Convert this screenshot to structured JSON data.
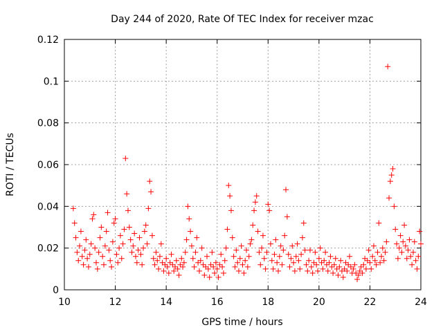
{
  "chart_data": {
    "type": "scatter",
    "title": "Day 244 of 2020, Rate Of TEC Index for receiver mzac",
    "xlabel": "GPS time / hours",
    "ylabel": "ROTI / TECUs",
    "xlim": [
      10,
      24
    ],
    "ylim": [
      0,
      0.12
    ],
    "x_ticks": [
      10,
      12,
      14,
      16,
      18,
      20,
      22,
      24
    ],
    "x_tick_labels": [
      "10",
      "12",
      "14",
      "16",
      "18",
      "20",
      "22",
      "24"
    ],
    "y_ticks": [
      0,
      0.02,
      0.04,
      0.06,
      0.08,
      0.1,
      0.12
    ],
    "y_tick_labels": [
      "0",
      "0.02",
      "0.04",
      "0.06",
      "0.08",
      "0.1",
      "0.12"
    ],
    "grid": true,
    "marker": "+",
    "marker_color": "#ff0000",
    "series": [
      {
        "name": "ROTI",
        "points": [
          [
            10.35,
            0.039
          ],
          [
            10.4,
            0.032
          ],
          [
            10.45,
            0.025
          ],
          [
            10.5,
            0.018
          ],
          [
            10.55,
            0.014
          ],
          [
            10.6,
            0.021
          ],
          [
            10.65,
            0.028
          ],
          [
            10.7,
            0.016
          ],
          [
            10.75,
            0.012
          ],
          [
            10.8,
            0.019
          ],
          [
            10.85,
            0.024
          ],
          [
            10.9,
            0.015
          ],
          [
            10.95,
            0.011
          ],
          [
            11.0,
            0.017
          ],
          [
            11.05,
            0.022
          ],
          [
            11.1,
            0.034
          ],
          [
            11.15,
            0.036
          ],
          [
            11.2,
            0.02
          ],
          [
            11.25,
            0.013
          ],
          [
            11.3,
            0.01
          ],
          [
            11.35,
            0.018
          ],
          [
            11.4,
            0.025
          ],
          [
            11.45,
            0.03
          ],
          [
            11.5,
            0.016
          ],
          [
            11.55,
            0.012
          ],
          [
            11.6,
            0.021
          ],
          [
            11.65,
            0.028
          ],
          [
            11.7,
            0.037
          ],
          [
            11.75,
            0.019
          ],
          [
            11.8,
            0.014
          ],
          [
            11.85,
            0.011
          ],
          [
            11.9,
            0.023
          ],
          [
            11.95,
            0.032
          ],
          [
            12.0,
            0.034
          ],
          [
            12.05,
            0.017
          ],
          [
            12.1,
            0.013
          ],
          [
            12.15,
            0.02
          ],
          [
            12.2,
            0.026
          ],
          [
            12.25,
            0.015
          ],
          [
            12.3,
            0.022
          ],
          [
            12.35,
            0.029
          ],
          [
            12.4,
            0.063
          ],
          [
            12.45,
            0.046
          ],
          [
            12.5,
            0.038
          ],
          [
            12.55,
            0.03
          ],
          [
            12.6,
            0.024
          ],
          [
            12.65,
            0.018
          ],
          [
            12.7,
            0.021
          ],
          [
            12.75,
            0.027
          ],
          [
            12.8,
            0.016
          ],
          [
            12.85,
            0.013
          ],
          [
            12.9,
            0.019
          ],
          [
            12.95,
            0.025
          ],
          [
            13.0,
            0.017
          ],
          [
            13.05,
            0.012
          ],
          [
            13.1,
            0.02
          ],
          [
            13.15,
            0.028
          ],
          [
            13.2,
            0.031
          ],
          [
            13.25,
            0.022
          ],
          [
            13.3,
            0.039
          ],
          [
            13.35,
            0.052
          ],
          [
            13.4,
            0.047
          ],
          [
            13.45,
            0.026
          ],
          [
            13.5,
            0.015
          ],
          [
            13.55,
            0.012
          ],
          [
            13.6,
            0.018
          ],
          [
            13.65,
            0.014
          ],
          [
            13.7,
            0.01
          ],
          [
            13.75,
            0.016
          ],
          [
            13.8,
            0.022
          ],
          [
            13.85,
            0.013
          ],
          [
            13.9,
            0.009
          ],
          [
            13.95,
            0.012
          ],
          [
            14.0,
            0.015
          ],
          [
            14.05,
            0.011
          ],
          [
            14.1,
            0.008
          ],
          [
            14.15,
            0.013
          ],
          [
            14.2,
            0.017
          ],
          [
            14.25,
            0.012
          ],
          [
            14.3,
            0.009
          ],
          [
            14.35,
            0.011
          ],
          [
            14.4,
            0.014
          ],
          [
            14.45,
            0.01
          ],
          [
            14.5,
            0.007
          ],
          [
            14.55,
            0.012
          ],
          [
            14.6,
            0.015
          ],
          [
            14.65,
            0.011
          ],
          [
            14.7,
            0.013
          ],
          [
            14.75,
            0.018
          ],
          [
            14.8,
            0.024
          ],
          [
            14.85,
            0.04
          ],
          [
            14.9,
            0.034
          ],
          [
            14.95,
            0.028
          ],
          [
            15.0,
            0.021
          ],
          [
            15.05,
            0.015
          ],
          [
            15.1,
            0.011
          ],
          [
            15.15,
            0.018
          ],
          [
            15.2,
            0.025
          ],
          [
            15.25,
            0.013
          ],
          [
            15.3,
            0.009
          ],
          [
            15.35,
            0.014
          ],
          [
            15.4,
            0.02
          ],
          [
            15.45,
            0.012
          ],
          [
            15.5,
            0.007
          ],
          [
            15.55,
            0.011
          ],
          [
            15.6,
            0.016
          ],
          [
            15.65,
            0.01
          ],
          [
            15.7,
            0.006
          ],
          [
            15.75,
            0.012
          ],
          [
            15.8,
            0.018
          ],
          [
            15.85,
            0.011
          ],
          [
            15.9,
            0.008
          ],
          [
            15.95,
            0.013
          ],
          [
            16.0,
            0.01
          ],
          [
            16.05,
            0.006
          ],
          [
            16.1,
            0.012
          ],
          [
            16.15,
            0.017
          ],
          [
            16.2,
            0.011
          ],
          [
            16.25,
            0.008
          ],
          [
            16.3,
            0.014
          ],
          [
            16.35,
            0.02
          ],
          [
            16.4,
            0.029
          ],
          [
            16.45,
            0.05
          ],
          [
            16.5,
            0.045
          ],
          [
            16.55,
            0.038
          ],
          [
            16.6,
            0.025
          ],
          [
            16.65,
            0.016
          ],
          [
            16.7,
            0.011
          ],
          [
            16.75,
            0.019
          ],
          [
            16.8,
            0.013
          ],
          [
            16.85,
            0.009
          ],
          [
            16.9,
            0.015
          ],
          [
            16.95,
            0.021
          ],
          [
            17.0,
            0.012
          ],
          [
            17.05,
            0.008
          ],
          [
            17.1,
            0.014
          ],
          [
            17.15,
            0.019
          ],
          [
            17.2,
            0.011
          ],
          [
            17.25,
            0.016
          ],
          [
            17.3,
            0.022
          ],
          [
            17.35,
            0.024
          ],
          [
            17.4,
            0.031
          ],
          [
            17.45,
            0.038
          ],
          [
            17.5,
            0.042
          ],
          [
            17.55,
            0.045
          ],
          [
            17.6,
            0.028
          ],
          [
            17.65,
            0.018
          ],
          [
            17.7,
            0.012
          ],
          [
            17.75,
            0.02
          ],
          [
            17.8,
            0.026
          ],
          [
            17.85,
            0.015
          ],
          [
            17.9,
            0.01
          ],
          [
            17.95,
            0.018
          ],
          [
            18.0,
            0.041
          ],
          [
            18.05,
            0.038
          ],
          [
            18.1,
            0.022
          ],
          [
            18.15,
            0.014
          ],
          [
            18.2,
            0.01
          ],
          [
            18.25,
            0.017
          ],
          [
            18.3,
            0.024
          ],
          [
            18.35,
            0.013
          ],
          [
            18.4,
            0.009
          ],
          [
            18.45,
            0.016
          ],
          [
            18.5,
            0.021
          ],
          [
            18.55,
            0.012
          ],
          [
            18.6,
            0.019
          ],
          [
            18.65,
            0.026
          ],
          [
            18.7,
            0.048
          ],
          [
            18.75,
            0.035
          ],
          [
            18.8,
            0.017
          ],
          [
            18.85,
            0.011
          ],
          [
            18.9,
            0.015
          ],
          [
            18.95,
            0.021
          ],
          [
            19.0,
            0.013
          ],
          [
            19.05,
            0.009
          ],
          [
            19.1,
            0.016
          ],
          [
            19.15,
            0.022
          ],
          [
            19.2,
            0.014
          ],
          [
            19.25,
            0.01
          ],
          [
            19.3,
            0.017
          ],
          [
            19.35,
            0.025
          ],
          [
            19.4,
            0.032
          ],
          [
            19.45,
            0.019
          ],
          [
            19.5,
            0.012
          ],
          [
            19.55,
            0.009
          ],
          [
            19.6,
            0.014
          ],
          [
            19.65,
            0.019
          ],
          [
            19.7,
            0.011
          ],
          [
            19.75,
            0.008
          ],
          [
            19.8,
            0.013
          ],
          [
            19.85,
            0.018
          ],
          [
            19.9,
            0.012
          ],
          [
            19.95,
            0.009
          ],
          [
            20.0,
            0.015
          ],
          [
            20.05,
            0.02
          ],
          [
            20.1,
            0.013
          ],
          [
            20.15,
            0.01
          ],
          [
            20.2,
            0.014
          ],
          [
            20.25,
            0.018
          ],
          [
            20.3,
            0.012
          ],
          [
            20.35,
            0.009
          ],
          [
            20.4,
            0.013
          ],
          [
            20.45,
            0.016
          ],
          [
            20.5,
            0.011
          ],
          [
            20.55,
            0.008
          ],
          [
            20.6,
            0.012
          ],
          [
            20.65,
            0.015
          ],
          [
            20.7,
            0.01
          ],
          [
            20.75,
            0.007
          ],
          [
            20.8,
            0.011
          ],
          [
            20.85,
            0.014
          ],
          [
            20.9,
            0.009
          ],
          [
            20.95,
            0.006
          ],
          [
            21.0,
            0.01
          ],
          [
            21.05,
            0.013
          ],
          [
            21.1,
            0.009
          ],
          [
            21.15,
            0.012
          ],
          [
            21.2,
            0.016
          ],
          [
            21.25,
            0.011
          ],
          [
            21.3,
            0.008
          ],
          [
            21.35,
            0.01
          ],
          [
            21.4,
            0.012
          ],
          [
            21.45,
            0.008
          ],
          [
            21.5,
            0.005
          ],
          [
            21.55,
            0.007
          ],
          [
            21.6,
            0.009
          ],
          [
            21.65,
            0.011
          ],
          [
            21.7,
            0.008
          ],
          [
            21.75,
            0.012
          ],
          [
            21.8,
            0.015
          ],
          [
            21.85,
            0.01
          ],
          [
            21.9,
            0.014
          ],
          [
            21.95,
            0.019
          ],
          [
            22.0,
            0.013
          ],
          [
            22.05,
            0.01
          ],
          [
            22.1,
            0.016
          ],
          [
            22.15,
            0.021
          ],
          [
            22.2,
            0.014
          ],
          [
            22.25,
            0.012
          ],
          [
            22.3,
            0.018
          ],
          [
            22.35,
            0.032
          ],
          [
            22.4,
            0.013
          ],
          [
            22.45,
            0.016
          ],
          [
            22.5,
            0.02
          ],
          [
            22.55,
            0.014
          ],
          [
            22.6,
            0.018
          ],
          [
            22.65,
            0.023
          ],
          [
            22.7,
            0.107
          ],
          [
            22.75,
            0.044
          ],
          [
            22.8,
            0.052
          ],
          [
            22.85,
            0.055
          ],
          [
            22.9,
            0.058
          ],
          [
            22.95,
            0.04
          ],
          [
            23.0,
            0.029
          ],
          [
            23.05,
            0.022
          ],
          [
            23.1,
            0.015
          ],
          [
            23.15,
            0.02
          ],
          [
            23.2,
            0.026
          ],
          [
            23.25,
            0.018
          ],
          [
            23.3,
            0.023
          ],
          [
            23.35,
            0.031
          ],
          [
            23.4,
            0.021
          ],
          [
            23.45,
            0.015
          ],
          [
            23.5,
            0.019
          ],
          [
            23.55,
            0.024
          ],
          [
            23.6,
            0.016
          ],
          [
            23.65,
            0.012
          ],
          [
            23.7,
            0.018
          ],
          [
            23.75,
            0.023
          ],
          [
            23.8,
            0.014
          ],
          [
            23.85,
            0.01
          ],
          [
            23.9,
            0.016
          ],
          [
            23.95,
            0.028
          ],
          [
            24.0,
            0.022
          ]
        ]
      }
    ]
  }
}
